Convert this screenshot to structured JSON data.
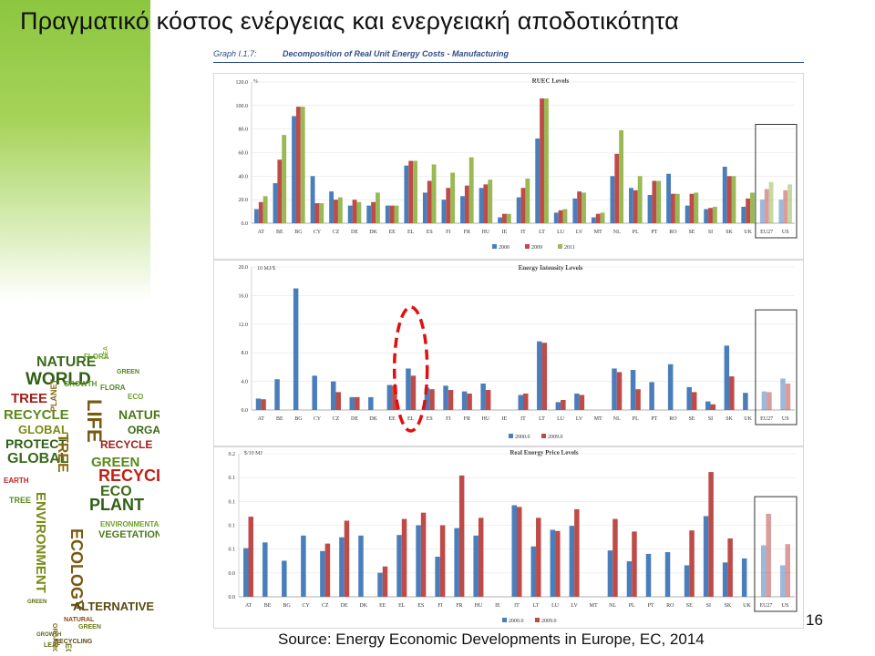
{
  "slide": {
    "title": "Πραγματικό κόστος ενέργειας και ενεργειακή αποδοτικότητα",
    "page_number": "16",
    "source": "Source: Energy Economic Developments in Europe, EC, 2014"
  },
  "graph_header": {
    "number": "Graph I.1.7:",
    "title": "Decomposition of Real Unit Energy Costs - Manufacturing"
  },
  "colors": {
    "blue": "#4a7ebb",
    "red": "#be4b48",
    "green": "#98b954",
    "highlight_red": "#e01010"
  },
  "word_cloud": {
    "words": [
      "NATURE",
      "FLORA",
      "LEAF",
      "GREEN",
      "WORLD",
      "GROWTH",
      "LIFE",
      "FLORA",
      "ECO",
      "TREE",
      "RECYCLE",
      "GLOBAL",
      "NATURAL",
      "ORGANIC",
      "PLANET",
      "PROTECT",
      "RECYCLE",
      "GLOBAL",
      "GREEN",
      "TREE",
      "ENVIRONMENT",
      "RECYCLING",
      "EARTH",
      "ECO",
      "TREE",
      "PLANT",
      "ECOLOGY",
      "ENVIRONMENTAL",
      "VEGETATION",
      "GREEN",
      "ALTERNATIVE",
      "NATURAL",
      "GREEN",
      "GROWTH",
      "ORGANIC",
      "RECYCLING",
      "ECO",
      "LEAF"
    ]
  },
  "chart_data": [
    {
      "type": "bar",
      "title": "RUEC Levels",
      "unit": "%",
      "ylim": [
        0,
        120
      ],
      "yticks": [
        "0.0",
        "20.0",
        "40.0",
        "60.0",
        "80.0",
        "100.0",
        "120.0"
      ],
      "categories": [
        "AT",
        "BE",
        "BG",
        "CY",
        "CZ",
        "DE",
        "DK",
        "EE",
        "EL",
        "ES",
        "FI",
        "FR",
        "HU",
        "IE",
        "IT",
        "LT",
        "LU",
        "LV",
        "MT",
        "NL",
        "PL",
        "PT",
        "RO",
        "SE",
        "SI",
        "SK",
        "UK",
        "EU27",
        "US"
      ],
      "highlighted": [
        "EU27",
        "US"
      ],
      "series": [
        {
          "name": "2000",
          "color": "#4a7ebb",
          "values": [
            12,
            34,
            91,
            40,
            27,
            15,
            15,
            15,
            49,
            26,
            20,
            23,
            30,
            5,
            22,
            72,
            9,
            21,
            5,
            40,
            30,
            24,
            42,
            15,
            12,
            48,
            14,
            20,
            20
          ]
        },
        {
          "name": "2009",
          "color": "#be4b48",
          "values": [
            18,
            54,
            99,
            17,
            20,
            20,
            18,
            15,
            53,
            36,
            30,
            32,
            33,
            8,
            30,
            106,
            11,
            27,
            8,
            59,
            28,
            36,
            25,
            25,
            13,
            40,
            21,
            29,
            28
          ]
        },
        {
          "name": "2011",
          "color": "#98b954",
          "values": [
            23,
            75,
            99,
            17,
            22,
            18,
            26,
            15,
            53,
            50,
            43,
            56,
            37,
            8,
            38,
            106,
            12,
            26,
            9,
            79,
            40,
            36,
            25,
            26,
            14,
            40,
            26,
            35,
            33
          ]
        }
      ],
      "legend": [
        "2000",
        "2009",
        "2011"
      ],
      "legend_position": "bottom"
    },
    {
      "type": "bar",
      "title": "Energy Intensity Levels",
      "unit": "10 MJ/$",
      "ylim": [
        0,
        20
      ],
      "yticks": [
        "0.0",
        "4.0",
        "8.0",
        "12.0",
        "16.0",
        "20.0"
      ],
      "categories": [
        "AT",
        "BE",
        "BG",
        "CY",
        "CZ",
        "DE",
        "DK",
        "EE",
        "EL",
        "ES",
        "FI",
        "FR",
        "HU",
        "IE",
        "IT",
        "LT",
        "LU",
        "LV",
        "MT",
        "NL",
        "PL",
        "PT",
        "RO",
        "SE",
        "SI",
        "SK",
        "UK",
        "EU27",
        "US"
      ],
      "highlighted": [
        "EU27",
        "US"
      ],
      "circled": "EL",
      "series": [
        {
          "name": "2000.0",
          "color": "#4a7ebb",
          "values": [
            1.6,
            4.3,
            17.0,
            4.8,
            4.0,
            1.8,
            1.8,
            3.5,
            5.8,
            3.1,
            3.4,
            2.6,
            3.7,
            0,
            2.1,
            9.6,
            1.1,
            2.3,
            0,
            5.8,
            5.6,
            3.9,
            6.4,
            3.2,
            1.2,
            9.0,
            2.4,
            2.6,
            4.4
          ]
        },
        {
          "name": "2009.0",
          "color": "#be4b48",
          "values": [
            1.5,
            0,
            0,
            0,
            2.5,
            1.8,
            0,
            3.4,
            4.8,
            2.9,
            2.8,
            2.3,
            2.8,
            0,
            2.3,
            9.4,
            1.4,
            2.1,
            0,
            5.3,
            2.9,
            0,
            0,
            2.5,
            0.8,
            4.7,
            0,
            2.5,
            3.7
          ]
        }
      ],
      "legend": [
        "2000.0",
        "2009.0"
      ],
      "legend_position": "bottom"
    },
    {
      "type": "bar",
      "title": "Real Energy Price Levels",
      "unit": "$/10 MJ",
      "ylim": [
        0,
        0.25
      ],
      "yticks": [
        "0.0",
        "0.0",
        "0.1",
        "0.1",
        "0.1",
        "0.1",
        "0.2"
      ],
      "categories": [
        "AT",
        "BE",
        "BG",
        "CY",
        "CZ",
        "DE",
        "DK",
        "EE",
        "EL",
        "ES",
        "FI",
        "FR",
        "HU",
        "IE",
        "IT",
        "LT",
        "LU",
        "LV",
        "MT",
        "NL",
        "PL",
        "PT",
        "RO",
        "SE",
        "SI",
        "SK",
        "UK",
        "EU27",
        "US"
      ],
      "highlighted": [
        "EU27",
        "US"
      ],
      "series": [
        {
          "name": "2000.0",
          "color": "#4a7ebb",
          "values": [
            0.085,
            0.095,
            0.063,
            0.107,
            0.08,
            0.104,
            0.107,
            0.042,
            0.108,
            0.125,
            0.07,
            0.12,
            0.107,
            0,
            0.16,
            0.088,
            0.117,
            0.124,
            0,
            0.081,
            0.062,
            0.075,
            0.078,
            0.055,
            0.141,
            0.06,
            0.067,
            0.09,
            0.055
          ]
        },
        {
          "name": "2009.0",
          "color": "#be4b48",
          "values": [
            0.14,
            0,
            0,
            0,
            0.093,
            0.133,
            0,
            0.053,
            0.136,
            0.147,
            0.125,
            0.212,
            0.138,
            0,
            0.157,
            0.138,
            0.115,
            0.153,
            0,
            0.136,
            0.114,
            0,
            0,
            0.116,
            0.218,
            0.102,
            0,
            0.145,
            0.092
          ]
        }
      ],
      "legend": [
        "2000.0",
        "2009.0"
      ],
      "legend_position": "bottom"
    }
  ]
}
